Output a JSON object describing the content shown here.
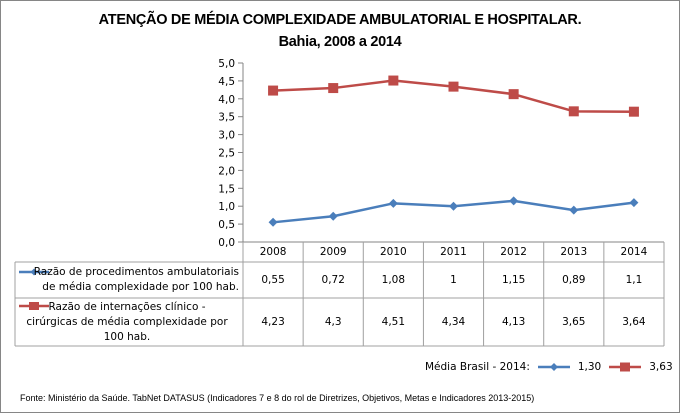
{
  "chart_data": {
    "type": "line",
    "title": "ATENÇÃO DE MÉDIA COMPLEXIDADE AMBULATORIAL E HOSPITALAR.",
    "subtitle": "Bahia, 2008 a 2014",
    "categories": [
      "2008",
      "2009",
      "2010",
      "2011",
      "2012",
      "2013",
      "2014"
    ],
    "ylim": [
      0,
      5
    ],
    "yticks": [
      "0,0",
      "0,5",
      "1,0",
      "1,5",
      "2,0",
      "2,5",
      "3,0",
      "3,5",
      "4,0",
      "4,5",
      "5,0"
    ],
    "grid": false,
    "series": [
      {
        "name": "Razão de procedimentos ambulatoriais de média complexidade por 100 hab.",
        "name_lines": [
          "Razão de procedimentos ambulatoriais",
          "de média complexidade por 100 hab."
        ],
        "values": [
          0.55,
          0.72,
          1.08,
          1.0,
          1.15,
          0.89,
          1.1
        ],
        "labels": [
          "0,55",
          "0,72",
          "1,08",
          "1",
          "1,15",
          "0,89",
          "1,1"
        ],
        "color": "#4a7ebb",
        "marker": "diamond"
      },
      {
        "name": "Razão de internações clínico - cirúrgicas de média complexidade por 100 hab.",
        "name_lines": [
          "Razão de internações clínico -",
          "cirúrgicas de média complexidade por",
          "100 hab."
        ],
        "values": [
          4.23,
          4.3,
          4.51,
          4.34,
          4.13,
          3.65,
          3.64
        ],
        "labels": [
          "4,23",
          "4,3",
          "4,51",
          "4,34",
          "4,13",
          "3,65",
          "3,64"
        ],
        "color": "#be4b48",
        "marker": "square"
      }
    ],
    "legend": "data-table",
    "annotation": {
      "label": "Média Brasil - 2014:",
      "values": [
        "1,30",
        "3,63"
      ]
    },
    "source": "Fonte: Ministério da Saúde. TabNet DATASUS (Indicadores 7 e 8 do rol de Diretrizes, Objetivos, Metas e Indicadores 2013-2015)"
  }
}
